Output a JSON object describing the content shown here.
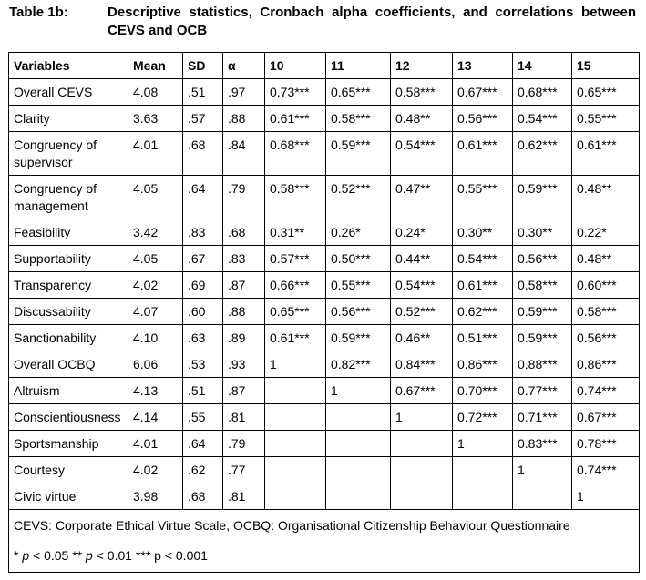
{
  "header": {
    "label": "Table 1b:",
    "title": "Descriptive statistics, Cronbach alpha coefficients, and correlations between CEVS and OCB"
  },
  "table": {
    "header": [
      "Variables",
      "Mean",
      "SD",
      "α",
      "10",
      "11",
      "12",
      "13",
      "14",
      "15"
    ],
    "rows": [
      [
        "Overall CEVS",
        "4.08",
        ".51",
        ".97",
        "0.73***",
        "0.65***",
        "0.58***",
        "0.67***",
        "0.68***",
        "0.65***"
      ],
      [
        "Clarity",
        "3.63",
        ".57",
        ".88",
        "0.61***",
        "0.58***",
        "0.48**",
        "0.56***",
        "0.54***",
        "0.55***"
      ],
      [
        "Congruency of supervisor",
        "4.01",
        ".68",
        ".84",
        "0.68***",
        "0.59***",
        "0.54***",
        "0.61***",
        "0.62***",
        "0.61***"
      ],
      [
        "Congruency of management",
        "4.05",
        ".64",
        ".79",
        "0.58***",
        "0.52***",
        "0.47**",
        "0.55***",
        "0.59***",
        "0.48**"
      ],
      [
        "Feasibility",
        "3.42",
        ".83",
        ".68",
        "0.31**",
        "0.26*",
        "0.24*",
        "0.30**",
        "0.30**",
        "0.22*"
      ],
      [
        "Supportability",
        "4.05",
        ".67",
        ".83",
        "0.57***",
        "0.50***",
        "0.44**",
        "0.54***",
        "0.56***",
        "0.48**"
      ],
      [
        "Transparency",
        "4.02",
        ".69",
        ".87",
        "0.66***",
        "0.55***",
        "0.54***",
        "0.61***",
        "0.58***",
        "0.60***"
      ],
      [
        "Discussability",
        "4.07",
        ".60",
        ".88",
        "0.65***",
        "0.56***",
        "0.52***",
        "0.62***",
        "0.59***",
        "0.58***"
      ],
      [
        "Sanctionability",
        "4.10",
        ".63",
        ".89",
        "0.61***",
        "0.59***",
        "0.46**",
        "0.51***",
        "0.59***",
        "0.56***"
      ],
      [
        "Overall OCBQ",
        "6.06",
        ".53",
        ".93",
        "1",
        "0.82***",
        "0.84***",
        "0.86***",
        "0.88***",
        "0.86***"
      ],
      [
        "Altruism",
        "4.13",
        ".51",
        ".87",
        null,
        "1",
        "0.67***",
        "0.70***",
        "0.77***",
        "0.74***"
      ],
      [
        "Conscientiousness",
        "4.14",
        ".55",
        ".81",
        null,
        null,
        "1",
        "0.72***",
        "0.71***",
        "0.67***"
      ],
      [
        "Sportsmanship",
        "4.01",
        ".64",
        ".79",
        null,
        null,
        null,
        "1",
        "0.83***",
        "0.78***"
      ],
      [
        "Courtesy",
        "4.02",
        ".62",
        ".77",
        null,
        null,
        null,
        null,
        "1",
        "0.74***"
      ],
      [
        "Civic virtue",
        "3.98",
        ".68",
        ".81",
        null,
        null,
        null,
        null,
        null,
        "1"
      ]
    ],
    "note": "CEVS: Corporate Ethical Virtue Scale, OCBQ: Organisational Citizenship Behaviour Questionnaire",
    "significance": [
      "* ",
      "p",
      " < 0.05 ** ",
      "p",
      " < 0.01 *** p < 0.001"
    ]
  }
}
